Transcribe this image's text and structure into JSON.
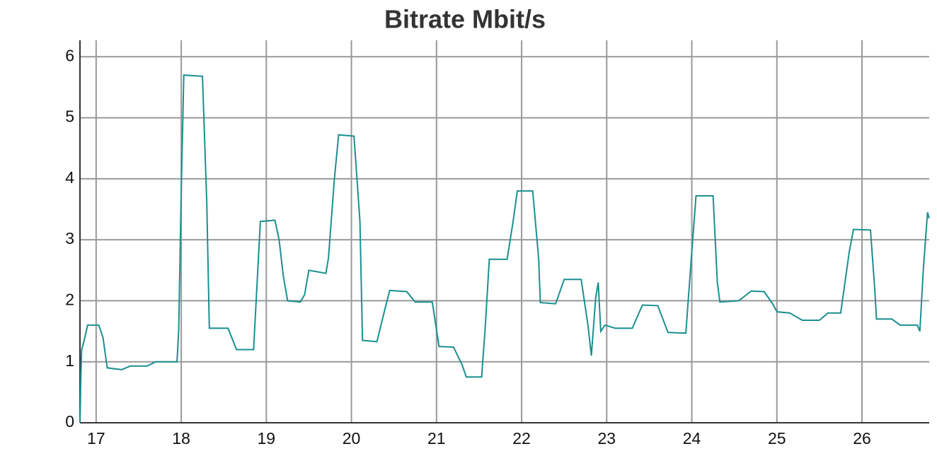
{
  "chart_data": {
    "type": "line",
    "title": "Bitrate Mbit/s",
    "x": [
      16.81,
      16.82,
      16.83,
      16.86,
      16.9,
      17.03,
      17.08,
      17.13,
      17.3,
      17.4,
      17.6,
      17.7,
      17.95,
      17.97,
      18.0,
      18.03,
      18.25,
      18.3,
      18.33,
      18.55,
      18.65,
      18.85,
      18.93,
      19.1,
      19.15,
      19.2,
      19.25,
      19.4,
      19.45,
      19.5,
      19.7,
      19.73,
      19.8,
      19.85,
      20.03,
      20.1,
      20.13,
      20.3,
      20.4,
      20.45,
      20.65,
      20.75,
      20.95,
      21.03,
      21.2,
      21.3,
      21.35,
      21.53,
      21.57,
      21.62,
      21.83,
      21.9,
      21.95,
      22.13,
      22.2,
      22.22,
      22.4,
      22.5,
      22.7,
      22.78,
      22.82,
      22.87,
      22.9,
      22.93,
      22.98,
      23.1,
      23.3,
      23.42,
      23.6,
      23.72,
      23.93,
      24.0,
      24.05,
      24.25,
      24.3,
      24.33,
      24.55,
      24.7,
      24.85,
      24.95,
      25.0,
      25.15,
      25.3,
      25.5,
      25.6,
      25.75,
      25.85,
      25.9,
      26.1,
      26.15,
      26.17,
      26.35,
      26.45,
      26.65,
      26.68,
      26.72,
      26.77,
      26.79
    ],
    "values": [
      0,
      0.75,
      1.2,
      1.35,
      1.6,
      1.6,
      1.4,
      0.9,
      0.87,
      0.93,
      0.93,
      1.0,
      1.0,
      1.5,
      3.8,
      5.7,
      5.68,
      3.6,
      1.55,
      1.55,
      1.2,
      1.2,
      3.3,
      3.32,
      3.0,
      2.4,
      2.0,
      1.98,
      2.1,
      2.5,
      2.45,
      2.7,
      4.0,
      4.72,
      4.7,
      3.3,
      1.35,
      1.33,
      1.9,
      2.17,
      2.15,
      1.98,
      1.98,
      1.25,
      1.24,
      0.95,
      0.75,
      0.75,
      1.5,
      2.68,
      2.68,
      3.3,
      3.8,
      3.8,
      2.7,
      1.97,
      1.95,
      2.35,
      2.35,
      1.6,
      1.1,
      2.05,
      2.3,
      1.5,
      1.6,
      1.55,
      1.55,
      1.93,
      1.92,
      1.48,
      1.47,
      2.8,
      3.72,
      3.72,
      2.3,
      1.98,
      2.0,
      2.16,
      2.15,
      1.95,
      1.82,
      1.8,
      1.68,
      1.68,
      1.8,
      1.8,
      2.8,
      3.17,
      3.16,
      2.2,
      1.7,
      1.7,
      1.6,
      1.6,
      1.5,
      2.5,
      3.45,
      3.35
    ],
    "color": "#1a8f8f",
    "xlim": [
      16.81,
      26.79
    ],
    "xticks": [
      17,
      18,
      19,
      20,
      21,
      22,
      23,
      24,
      25,
      26
    ],
    "ylim": [
      0,
      6.27
    ],
    "yticks": [
      0,
      1,
      2,
      3,
      4,
      5,
      6
    ],
    "grid": true
  }
}
